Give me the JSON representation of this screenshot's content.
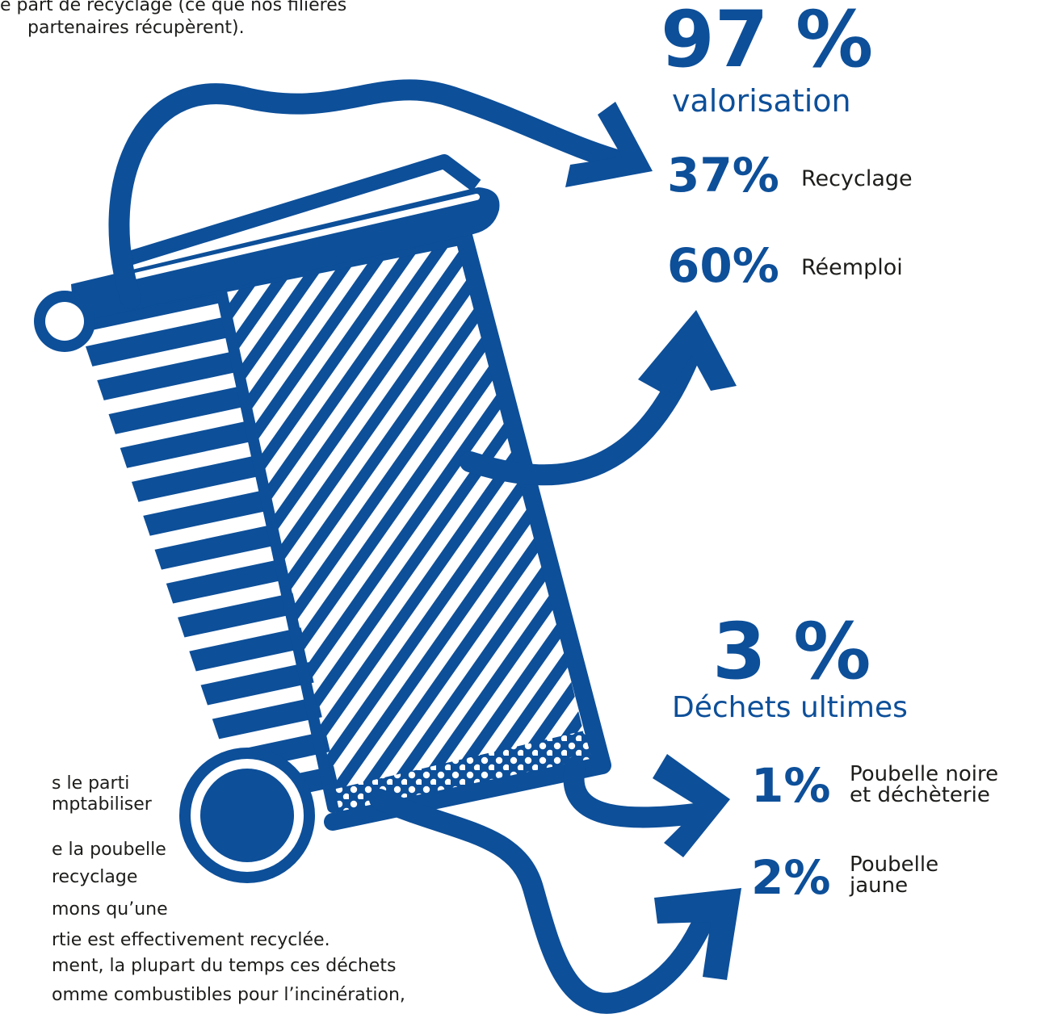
{
  "intro_text": {
    "line1": "e part de recyclage (ce que nos filières",
    "line2": "partenaires récupèrent)."
  },
  "valorisation": {
    "percent": "97 %",
    "label": "valorisation"
  },
  "recyclage": {
    "percent": "37%",
    "label": "Recyclage"
  },
  "reemploi": {
    "percent": "60%",
    "label": "Réemploi"
  },
  "dechets_ultimes": {
    "percent": "3 %",
    "label": "Déchets ultimes"
  },
  "poubelle_noire": {
    "percent": "1%",
    "label_line1": "Poubelle noire",
    "label_line2": "et déchèterie"
  },
  "poubelle_jaune": {
    "percent": "2%",
    "label_line1": "Poubelle",
    "label_line2": "jaune"
  },
  "bottom_text": {
    "line1": "s le parti",
    "line2": "mptabiliser",
    "line3": "e la poubelle",
    "line4": "recyclage",
    "line5": "mons qu’une",
    "line6": "rtie est effectivement recyclée.",
    "line7": "ment, la plupart du temps ces déchets",
    "line8": "omme combustibles pour l’incinération,"
  },
  "colors": {
    "brand_blue": "#0d4f99",
    "text_dark": "#1d1d1b",
    "background": "#ffffff"
  }
}
